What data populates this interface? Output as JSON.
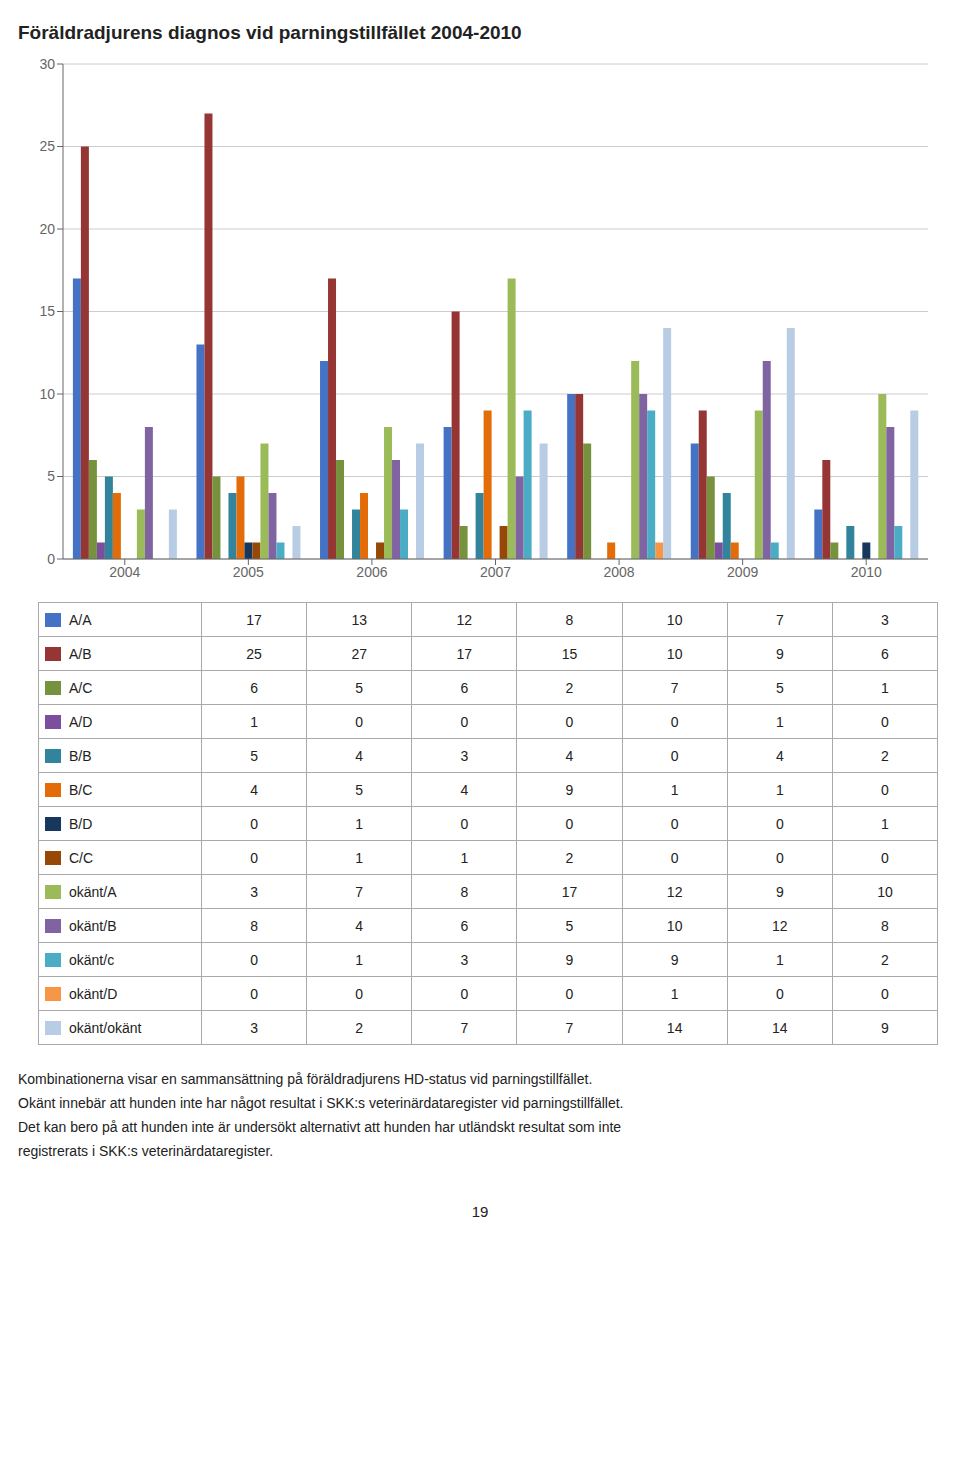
{
  "chart_data": {
    "type": "bar",
    "title": "Föräldradjurens diagnos vid parningstillfället 2004-2010",
    "categories": [
      "2004",
      "2005",
      "2006",
      "2007",
      "2008",
      "2009",
      "2010"
    ],
    "series": [
      {
        "name": "A/A",
        "color": "#4472C4",
        "values": [
          17,
          13,
          12,
          8,
          10,
          7,
          3
        ]
      },
      {
        "name": "A/B",
        "color": "#963634",
        "values": [
          25,
          27,
          17,
          15,
          10,
          9,
          6
        ]
      },
      {
        "name": "A/C",
        "color": "#76923C",
        "values": [
          6,
          5,
          6,
          2,
          7,
          5,
          1
        ]
      },
      {
        "name": "A/D",
        "color": "#7B4F9E",
        "values": [
          1,
          0,
          0,
          0,
          0,
          1,
          0
        ]
      },
      {
        "name": "B/B",
        "color": "#31849B",
        "values": [
          5,
          4,
          3,
          4,
          0,
          4,
          2
        ]
      },
      {
        "name": "B/C",
        "color": "#E36C09",
        "values": [
          4,
          5,
          4,
          9,
          1,
          1,
          0
        ]
      },
      {
        "name": "B/D",
        "color": "#17375E",
        "values": [
          0,
          1,
          0,
          0,
          0,
          0,
          1
        ]
      },
      {
        "name": "C/C",
        "color": "#974706",
        "values": [
          0,
          1,
          1,
          2,
          0,
          0,
          0
        ]
      },
      {
        "name": "okänt/A",
        "color": "#9BBB59",
        "values": [
          3,
          7,
          8,
          17,
          12,
          9,
          10
        ]
      },
      {
        "name": "okänt/B",
        "color": "#8064A2",
        "values": [
          8,
          4,
          6,
          5,
          10,
          12,
          8
        ]
      },
      {
        "name": "okänt/c",
        "color": "#4BACC6",
        "values": [
          0,
          1,
          3,
          9,
          9,
          1,
          2
        ]
      },
      {
        "name": "okänt/D",
        "color": "#F79646",
        "values": [
          0,
          0,
          0,
          0,
          1,
          0,
          0
        ]
      },
      {
        "name": "okänt/okänt",
        "color": "#B8CCE4",
        "values": [
          3,
          2,
          7,
          7,
          14,
          14,
          9
        ]
      }
    ],
    "ylim": [
      0,
      30
    ],
    "yticks": [
      0,
      5,
      10,
      15,
      20,
      25,
      30
    ],
    "grid": true,
    "annotations": [
      "Kombinationerna visar en sammansättning på föräldradjurens HD-status vid parningstillfället.",
      "Okänt innebär att hunden inte har något resultat i SKK:s veterinärdataregister vid parningstillfället.",
      "Det kan bero på att hunden inte är undersökt alternativt att hunden har utländskt resultat som inte",
      "registrerats i SKK:s veterinärdataregister.",
      "19"
    ]
  }
}
